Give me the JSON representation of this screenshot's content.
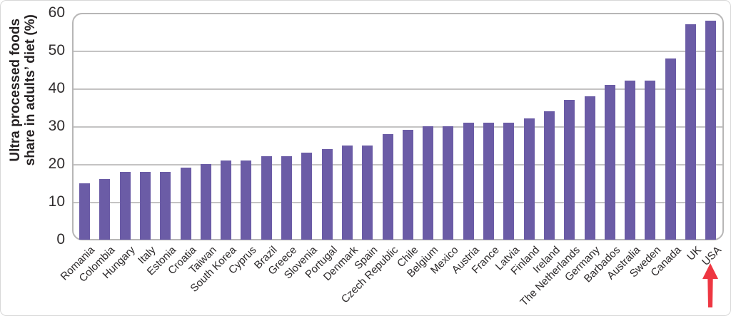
{
  "chart_data": {
    "type": "bar",
    "title": "",
    "ylabel_lines": [
      "Ultra processed foods",
      "share in adults’ diet (%)"
    ],
    "categories": [
      "Romania",
      "Colombia",
      "Hungary",
      "Italy",
      "Estonia",
      "Croatia",
      "Taiwan",
      "South Korea",
      "Cyprus",
      "Brazil",
      "Greece",
      "Slovenia",
      "Portugal",
      "Denmark",
      "Spain",
      "Czech Republic",
      "Chile",
      "Belgium",
      "Mexico",
      "Austria",
      "France",
      "Latvia",
      "Finland",
      "Ireland",
      "The Netherlands",
      "Germany",
      "Barbados",
      "Australia",
      "Sweden",
      "Canada",
      "UK",
      "USA"
    ],
    "values": [
      15,
      16,
      18,
      18,
      18,
      19,
      20,
      21,
      21,
      22,
      22,
      23,
      24,
      25,
      25,
      28,
      29,
      30,
      30,
      31,
      31,
      31,
      32,
      34,
      37,
      38,
      41,
      42,
      42,
      48,
      57,
      58
    ],
    "ylim": [
      0,
      60
    ],
    "yticks": [
      0,
      10,
      20,
      30,
      40,
      50,
      60
    ],
    "grid": true,
    "legend": null,
    "bar_color": "#6b5ca6",
    "gridline_color": "#c4c3c3",
    "frame_color": "#b7b6b6",
    "text_color": "#2b2829",
    "annotation": {
      "type": "up-arrow",
      "target": "USA",
      "color": "#ee3742"
    }
  }
}
